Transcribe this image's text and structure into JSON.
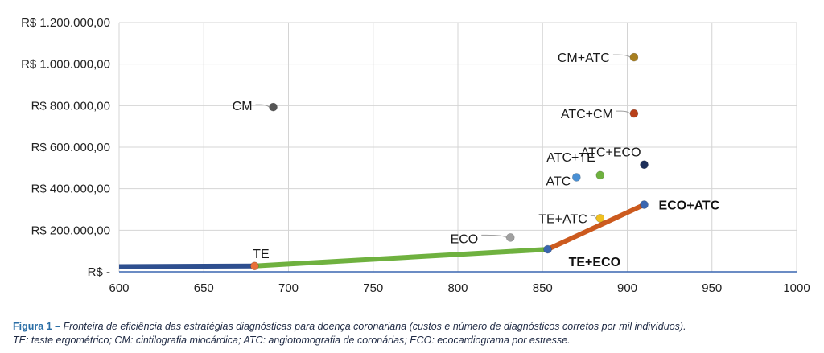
{
  "caption": {
    "figure_label": "Figura 1 –",
    "line1": " Fronteira de eficiência das estratégias diagnósticas para doença coronariana (custos e número de diagnósticos corretos por mil indivíduos).",
    "line2": "TE: teste ergométrico; CM: cintilografia miocárdica; ATC: angiotomografia de coronárias; ECO: ecocardiograma por estresse."
  },
  "chart_data": {
    "type": "scatter",
    "title": "",
    "xlabel": "",
    "ylabel": "",
    "xlim": [
      600,
      1000
    ],
    "ylim": [
      0,
      1200000
    ],
    "x_ticks": [
      600,
      650,
      700,
      750,
      800,
      850,
      900,
      950,
      1000
    ],
    "x_tick_labels": [
      "600",
      "650",
      "700",
      "750",
      "800",
      "850",
      "900",
      "950",
      "1000"
    ],
    "y_ticks": [
      0,
      200000,
      400000,
      600000,
      800000,
      1000000,
      1200000
    ],
    "y_tick_labels": [
      "R$ -",
      "R$ 200.000,00",
      "R$ 400.000,00",
      "R$ 600.000,00",
      "R$ 800.000,00",
      "R$ 1.000.000,00",
      "R$ 1.200.000,00"
    ],
    "grid": true,
    "frontier_segments": [
      {
        "from": [
          600,
          25000
        ],
        "to": [
          680,
          28000
        ],
        "color": "#2e4f8f"
      },
      {
        "from": [
          680,
          28000
        ],
        "to": [
          853,
          108000
        ],
        "color": "#6fb13f"
      },
      {
        "from": [
          853,
          108000
        ],
        "to": [
          910,
          323000
        ],
        "color": "#cc5a1e"
      }
    ],
    "points": [
      {
        "label": "TE",
        "x": 680,
        "y": 28000,
        "color": "#e8703a",
        "bold": false,
        "leader": false
      },
      {
        "label": "CM",
        "x": 691,
        "y": 793000,
        "color": "#555555",
        "bold": false,
        "leader": true
      },
      {
        "label": "ECO",
        "x": 831,
        "y": 165000,
        "color": "#a0a0a0",
        "bold": false,
        "leader": true
      },
      {
        "label": "TE+ECO",
        "x": 853,
        "y": 108000,
        "color": "#3a66b0",
        "bold": true,
        "leader": false
      },
      {
        "label": "ATC",
        "x": 870,
        "y": 455000,
        "color": "#4a90d4",
        "bold": false,
        "leader": false
      },
      {
        "label": "ATC+TE",
        "x": 884,
        "y": 465000,
        "color": "#6fb13f",
        "bold": false,
        "leader": false
      },
      {
        "label": "TE+ATC",
        "x": 884,
        "y": 258000,
        "color": "#f0c020",
        "bold": false,
        "leader": true
      },
      {
        "label": "CM+ATC",
        "x": 904,
        "y": 1033000,
        "color": "#a87f20",
        "bold": false,
        "leader": true
      },
      {
        "label": "ATC+CM",
        "x": 904,
        "y": 762000,
        "color": "#b8401a",
        "bold": false,
        "leader": true
      },
      {
        "label": "ATC+ECO",
        "x": 910,
        "y": 516000,
        "color": "#1d2f5a",
        "bold": false,
        "leader": false
      },
      {
        "label": "ECO+ATC",
        "x": 910,
        "y": 323000,
        "color": "#3a66b0",
        "bold": true,
        "leader": false
      }
    ]
  }
}
